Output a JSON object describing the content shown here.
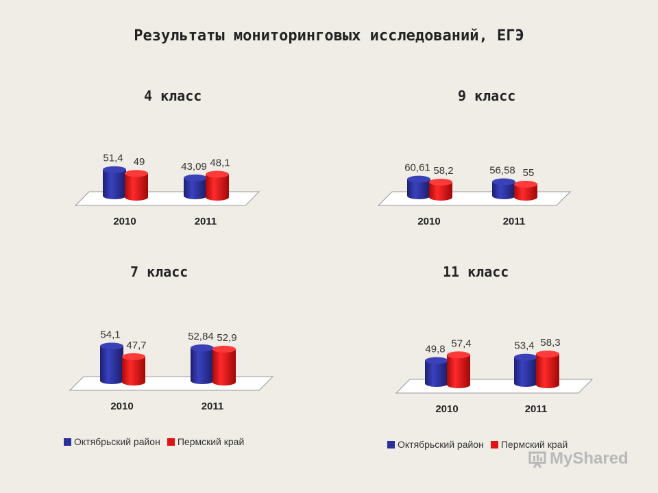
{
  "page": {
    "title": "Результаты мониторинговых исследований, ЕГЭ"
  },
  "colors": {
    "district": "#2a2f9a",
    "region": "#e11414"
  },
  "legend": {
    "items": [
      {
        "label": "Октябрьский район",
        "color": "#2a2f9a"
      },
      {
        "label": "Пермский край",
        "color": "#e11414"
      }
    ]
  },
  "watermark": {
    "text": "MyShared"
  },
  "chart_data": [
    {
      "type": "bar",
      "title": "4 класс",
      "categories": [
        "2010",
        "2011"
      ],
      "series": [
        {
          "name": "Октябрьский район",
          "values": [
            51.4,
            43.09
          ],
          "labels": [
            "51,4",
            "43,09"
          ]
        },
        {
          "name": "Пермский край",
          "values": [
            49,
            48.1
          ],
          "labels": [
            "49",
            "48,1"
          ]
        }
      ]
    },
    {
      "type": "bar",
      "title": "9 класс",
      "categories": [
        "2010",
        "2011"
      ],
      "series": [
        {
          "name": "Октябрьский район",
          "values": [
            60.61,
            56.58
          ],
          "labels": [
            "60,61",
            "56,58"
          ]
        },
        {
          "name": "Пермский край",
          "values": [
            58.2,
            55
          ],
          "labels": [
            "58,2",
            "55"
          ]
        }
      ]
    },
    {
      "type": "bar",
      "title": "7 класс",
      "categories": [
        "2010",
        "2011"
      ],
      "series": [
        {
          "name": "Октябрьский район",
          "values": [
            54.1,
            52.84
          ],
          "labels": [
            "54,1",
            "52,84"
          ]
        },
        {
          "name": "Пермский край",
          "values": [
            47.7,
            52.9
          ],
          "labels": [
            "47,7",
            "52,9"
          ]
        }
      ]
    },
    {
      "type": "bar",
      "title": "11 класс",
      "categories": [
        "2010",
        "2011"
      ],
      "series": [
        {
          "name": "Октябрьский район",
          "values": [
            49.8,
            53.4
          ],
          "labels": [
            "49,8",
            "53,4"
          ]
        },
        {
          "name": "Пермский край",
          "values": [
            57.4,
            58.3
          ],
          "labels": [
            "57,4",
            "58,3"
          ]
        }
      ]
    }
  ]
}
